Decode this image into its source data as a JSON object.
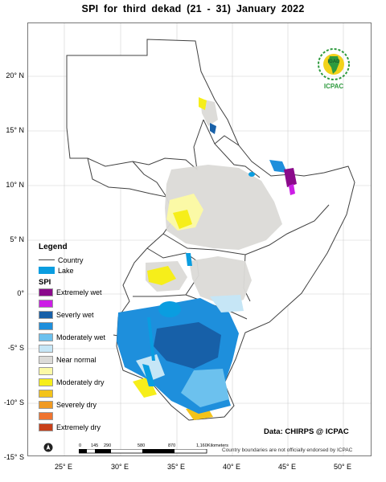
{
  "title": "SPI   for    third dekad (21 - 31)  January 2022",
  "latitude_labels": [
    "20° N",
    "15° N",
    "10° N",
    "5° N",
    "0°",
    "-5° S",
    "-10° S",
    "-15° S"
  ],
  "longitude_labels": [
    "25° E",
    "30° E",
    "35° E",
    "40° E",
    "45° E",
    "50° E"
  ],
  "legend": {
    "title": "Legend",
    "country_label": "Country",
    "lake_label": "Lake",
    "spi_title": "SPI",
    "classes": [
      {
        "label": "Extremely wet",
        "color": "#8a0a8a"
      },
      {
        "label": "",
        "color": "#cc1ee6"
      },
      {
        "label": "Severly wet",
        "color": "#1760a8"
      },
      {
        "label": "",
        "color": "#1e8fdc"
      },
      {
        "label": "Moderately wet",
        "color": "#6cc1ee"
      },
      {
        "label": "",
        "color": "#c6e6f6"
      },
      {
        "label": "Near normal",
        "color": "#dcdbd8"
      },
      {
        "label": "",
        "color": "#fbf9a6"
      },
      {
        "label": "Moderately dry",
        "color": "#f6ee1a"
      },
      {
        "label": "",
        "color": "#f3c31a"
      },
      {
        "label": "Severely dry",
        "color": "#f09a22"
      },
      {
        "label": "",
        "color": "#ef7430"
      },
      {
        "label": "Extremely dry",
        "color": "#c8401a"
      }
    ]
  },
  "data_credit": "Data: CHIRPS @ ICPAC",
  "scale_bar": {
    "numbers": [
      "0",
      "145",
      "290",
      "580",
      "870",
      "1,160"
    ],
    "units": "Kilometers"
  },
  "disclaimer": "Country boundaries are not officially endorsed by ICPAC",
  "logo": {
    "name": "IGAD",
    "subtitle": "ICPAC"
  }
}
